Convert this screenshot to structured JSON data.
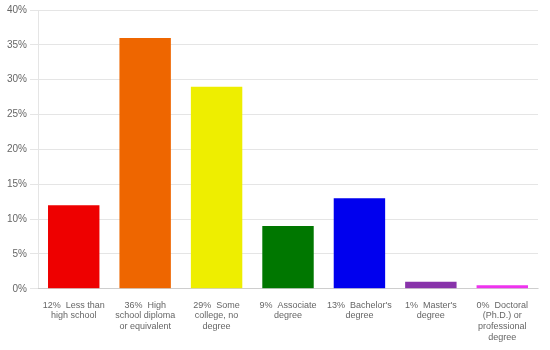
{
  "chart_data": {
    "type": "bar",
    "categories": [
      "12%  Less than\nhigh school",
      "36%  High\nschool diploma\nor equivalent",
      "29%  Some\ncollege, no\ndegree",
      "9%  Associate\ndegree",
      "13%  Bachelor's\ndegree",
      "1%  Master's\ndegree",
      "0%  Doctoral\n(Ph.D.) or\nprofessional\ndegree"
    ],
    "values": [
      12,
      36,
      29,
      9,
      13,
      1,
      0.5
    ],
    "colors": [
      "#ee0000",
      "#ee6600",
      "#eeee00",
      "#007700",
      "#0000ee",
      "#8833aa",
      "#ee33ee"
    ],
    "ylim": [
      0,
      40
    ],
    "yticks": [
      {
        "value": 0,
        "label": "0%"
      },
      {
        "value": 5,
        "label": "5%"
      },
      {
        "value": 10,
        "label": "10%"
      },
      {
        "value": 15,
        "label": "15%"
      },
      {
        "value": 20,
        "label": "20%"
      },
      {
        "value": 25,
        "label": "25%"
      },
      {
        "value": 30,
        "label": "30%"
      },
      {
        "value": 35,
        "label": "35%"
      },
      {
        "value": 40,
        "label": "40%"
      }
    ],
    "grid": true
  }
}
